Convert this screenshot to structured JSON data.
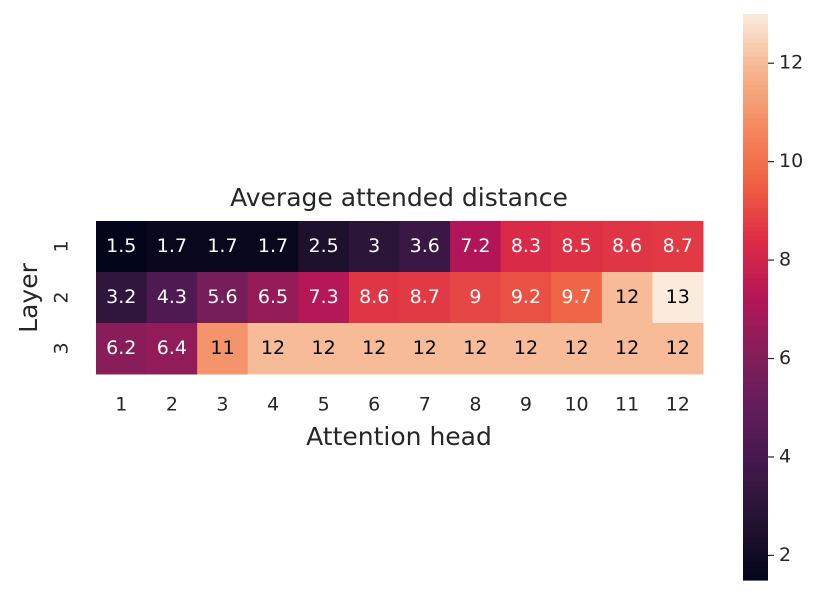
{
  "chart_data": {
    "type": "heatmap",
    "title": "Average attended distance",
    "x_label": "Attention head",
    "y_label": "Layer",
    "x_categories": [
      "1",
      "2",
      "3",
      "4",
      "5",
      "6",
      "7",
      "8",
      "9",
      "10",
      "11",
      "12"
    ],
    "y_categories": [
      "1",
      "2",
      "3"
    ],
    "values": [
      [
        1.5,
        1.7,
        1.7,
        1.7,
        2.5,
        3,
        3.6,
        7.2,
        8.3,
        8.5,
        8.6,
        8.7
      ],
      [
        3.2,
        4.3,
        5.6,
        6.5,
        7.3,
        8.6,
        8.7,
        9,
        9.2,
        9.7,
        12,
        13
      ],
      [
        6.2,
        6.4,
        11,
        12,
        12,
        12,
        12,
        12,
        12,
        12,
        12,
        12
      ]
    ],
    "colormap": "rocket",
    "clim": [
      1.5,
      13
    ],
    "cticks": [
      2,
      4,
      6,
      8,
      10,
      12
    ]
  }
}
